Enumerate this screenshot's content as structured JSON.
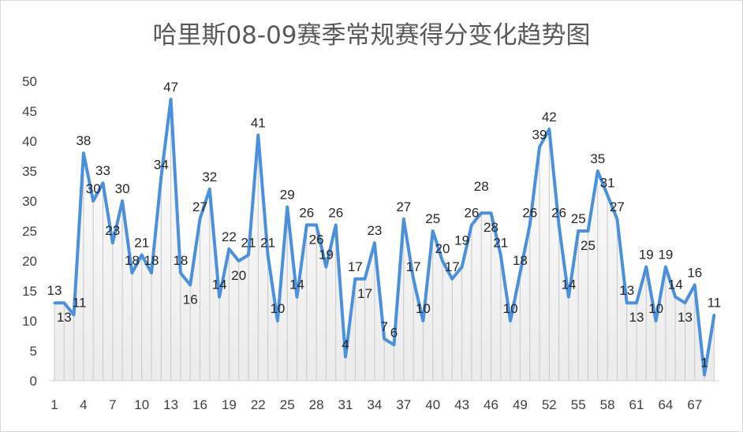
{
  "chart_data": {
    "type": "line",
    "title": "哈里斯08-09赛季常规赛得分变化趋势图",
    "xlabel": "",
    "ylabel": "",
    "ylim": [
      0,
      50
    ],
    "y_ticks": [
      0,
      5,
      10,
      15,
      20,
      25,
      30,
      35,
      40,
      45,
      50
    ],
    "x_ticks": [
      1,
      4,
      7,
      10,
      13,
      16,
      19,
      22,
      25,
      28,
      31,
      34,
      37,
      40,
      43,
      46,
      49,
      52,
      55,
      58,
      61,
      64,
      67
    ],
    "x": [
      1,
      2,
      3,
      4,
      5,
      6,
      7,
      8,
      9,
      10,
      11,
      12,
      13,
      14,
      15,
      16,
      17,
      18,
      19,
      20,
      21,
      22,
      23,
      24,
      25,
      26,
      27,
      28,
      29,
      30,
      31,
      32,
      33,
      34,
      35,
      36,
      37,
      38,
      39,
      40,
      41,
      42,
      43,
      44,
      45,
      46,
      47,
      48,
      49,
      50,
      51,
      52,
      53,
      54,
      55,
      56,
      57,
      58,
      59,
      60,
      61,
      62,
      63,
      64,
      65,
      66,
      67,
      68,
      69
    ],
    "values": [
      13,
      13,
      11,
      38,
      30,
      33,
      23,
      30,
      18,
      21,
      18,
      34,
      47,
      18,
      16,
      27,
      32,
      14,
      22,
      20,
      21,
      41,
      21,
      10,
      29,
      14,
      26,
      26,
      19,
      26,
      4,
      17,
      17,
      23,
      7,
      6,
      27,
      17,
      10,
      25,
      20,
      17,
      19,
      26,
      28,
      28,
      21,
      10,
      18,
      26,
      39,
      42,
      26,
      14,
      25,
      25,
      35,
      31,
      27,
      13,
      13,
      19,
      10,
      19,
      14,
      13,
      16,
      1,
      11
    ],
    "data_labels": true,
    "grid": false,
    "drop_lines": true,
    "line_color": "#4a90dc"
  }
}
